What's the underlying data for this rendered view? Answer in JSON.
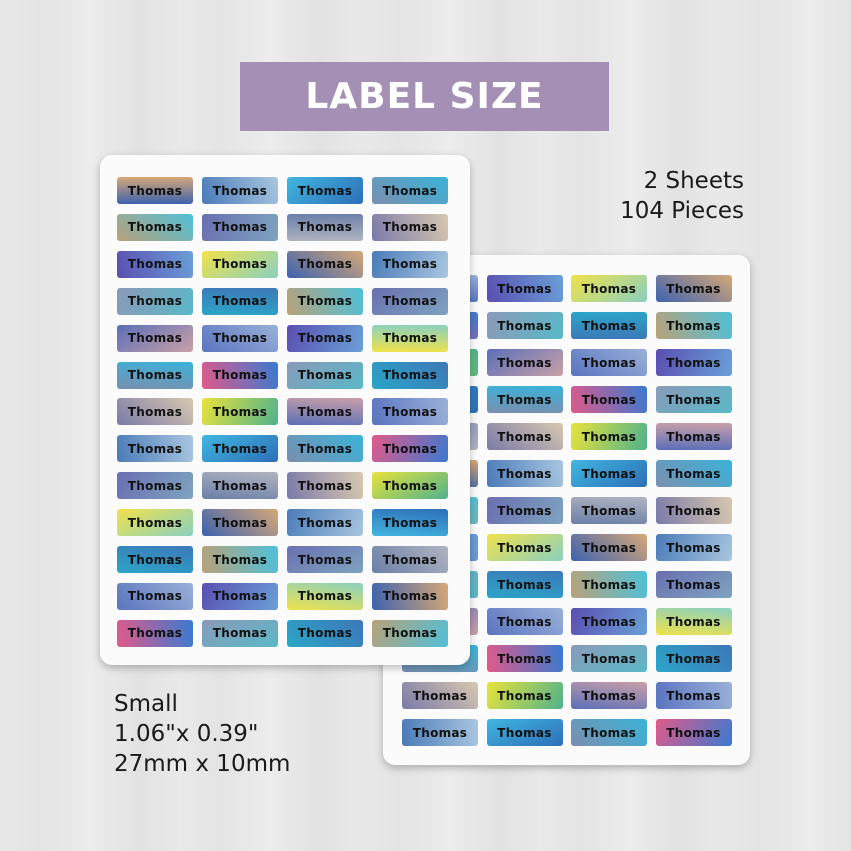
{
  "banner": {
    "title": "LABEL SIZE",
    "color": "#a590b5"
  },
  "sheets": {
    "count_text": "2 Sheets",
    "pieces_text": "104 Pieces"
  },
  "size": {
    "name": "Small",
    "inches": "1.06\"x 0.39\"",
    "mm": "27mm x 10mm"
  },
  "label": {
    "name": "Thomas",
    "rows": 13,
    "cols": 4
  }
}
